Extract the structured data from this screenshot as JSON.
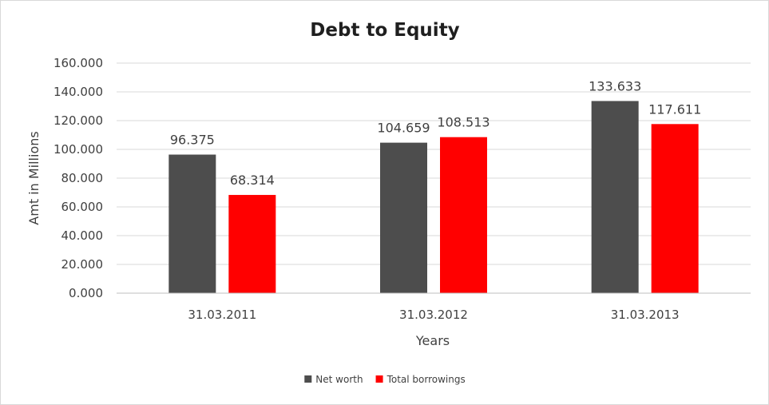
{
  "chart_data": {
    "type": "bar",
    "title": "Debt to Equity",
    "xlabel": "Years",
    "ylabel": "Amt in Millions",
    "categories": [
      "31.03.2011",
      "31.03.2012",
      "31.03.2013"
    ],
    "series": [
      {
        "name": "Net worth",
        "values": [
          96.375,
          104.659,
          133.633
        ],
        "labels": [
          "96.375",
          "104.659",
          "133.633"
        ],
        "color": "#4d4d4d"
      },
      {
        "name": "Total borrowings",
        "values": [
          68.314,
          108.513,
          117.611
        ],
        "labels": [
          "68.314",
          "108.513",
          "117.611"
        ],
        "color": "#ff0000"
      }
    ],
    "ylim": [
      0,
      160
    ],
    "yticks": [
      0,
      20,
      40,
      60,
      80,
      100,
      120,
      140,
      160
    ],
    "ytick_labels": [
      "0.000",
      "20.000",
      "40.000",
      "60.000",
      "80.000",
      "100.000",
      "120.000",
      "140.000",
      "160.000"
    ],
    "grid": true,
    "legend_position": "bottom"
  }
}
